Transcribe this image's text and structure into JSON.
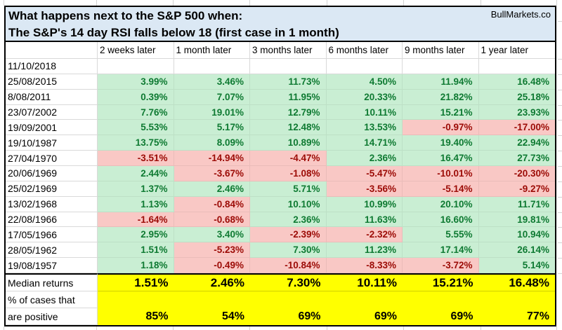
{
  "branding": "BullMarkets.co",
  "title": {
    "line1": "What happens next to the S&P 500 when:",
    "line2": "The S&P's 14 day RSI falls below 18 (first case in 1 month)"
  },
  "table": {
    "columns": [
      "2 weeks later",
      "1 month later",
      "3 months later",
      "6 months later",
      "9 months later",
      "1 year later"
    ],
    "rows": [
      {
        "date": "11/10/2018",
        "values": [
          "",
          "",
          "",
          "",
          "",
          ""
        ],
        "status": [
          "empty",
          "empty",
          "empty",
          "empty",
          "empty",
          "empty"
        ]
      },
      {
        "date": "25/08/2015",
        "values": [
          "3.99%",
          "3.46%",
          "11.73%",
          "4.50%",
          "11.94%",
          "16.48%"
        ],
        "status": [
          "positive",
          "positive",
          "positive",
          "positive",
          "positive",
          "positive"
        ]
      },
      {
        "date": "8/08/2011",
        "values": [
          "0.39%",
          "7.07%",
          "11.95%",
          "20.33%",
          "21.82%",
          "25.18%"
        ],
        "status": [
          "positive",
          "positive",
          "positive",
          "positive",
          "positive",
          "positive"
        ]
      },
      {
        "date": "23/07/2002",
        "values": [
          "7.76%",
          "19.01%",
          "12.79%",
          "10.11%",
          "15.21%",
          "23.93%"
        ],
        "status": [
          "positive",
          "positive",
          "positive",
          "positive",
          "positive",
          "positive"
        ]
      },
      {
        "date": "19/09/2001",
        "values": [
          "5.53%",
          "5.17%",
          "12.48%",
          "13.53%",
          "-0.97%",
          "-17.00%"
        ],
        "status": [
          "positive",
          "positive",
          "positive",
          "positive",
          "negative",
          "negative"
        ]
      },
      {
        "date": "19/10/1987",
        "values": [
          "13.75%",
          "8.09%",
          "10.89%",
          "14.71%",
          "19.40%",
          "22.94%"
        ],
        "status": [
          "positive",
          "positive",
          "positive",
          "positive",
          "positive",
          "positive"
        ]
      },
      {
        "date": "27/04/1970",
        "values": [
          "-3.51%",
          "-14.94%",
          "-4.47%",
          "2.36%",
          "16.47%",
          "27.73%"
        ],
        "status": [
          "negative",
          "negative",
          "negative",
          "positive",
          "positive",
          "positive"
        ]
      },
      {
        "date": "20/06/1969",
        "values": [
          "2.44%",
          "-3.67%",
          "-1.08%",
          "-5.47%",
          "-10.01%",
          "-20.30%"
        ],
        "status": [
          "positive",
          "negative",
          "negative",
          "negative",
          "negative",
          "negative"
        ]
      },
      {
        "date": "25/02/1969",
        "values": [
          "1.37%",
          "2.46%",
          "5.71%",
          "-3.56%",
          "-5.14%",
          "-9.27%"
        ],
        "status": [
          "positive",
          "positive",
          "positive",
          "negative",
          "negative",
          "negative"
        ]
      },
      {
        "date": "13/02/1968",
        "values": [
          "1.13%",
          "-0.84%",
          "10.10%",
          "10.99%",
          "20.10%",
          "11.71%"
        ],
        "status": [
          "positive",
          "negative",
          "positive",
          "positive",
          "positive",
          "positive"
        ]
      },
      {
        "date": "22/08/1966",
        "values": [
          "-1.64%",
          "-0.68%",
          "2.36%",
          "11.63%",
          "16.60%",
          "19.81%"
        ],
        "status": [
          "negative",
          "negative",
          "positive",
          "positive",
          "positive",
          "positive"
        ]
      },
      {
        "date": "17/05/1966",
        "values": [
          "2.95%",
          "3.40%",
          "-2.39%",
          "-2.32%",
          "5.55%",
          "10.94%"
        ],
        "status": [
          "positive",
          "positive",
          "negative",
          "negative",
          "positive",
          "positive"
        ]
      },
      {
        "date": "28/05/1962",
        "values": [
          "1.51%",
          "-5.23%",
          "7.30%",
          "11.23%",
          "17.14%",
          "26.14%"
        ],
        "status": [
          "positive",
          "negative",
          "positive",
          "positive",
          "positive",
          "positive"
        ]
      },
      {
        "date": "19/08/1957",
        "values": [
          "1.18%",
          "-0.49%",
          "-10.84%",
          "-8.33%",
          "-3.72%",
          "5.14%"
        ],
        "status": [
          "positive",
          "negative",
          "negative",
          "negative",
          "negative",
          "positive"
        ]
      }
    ],
    "summary": {
      "median_label": "Median returns",
      "median_values": [
        "1.51%",
        "2.46%",
        "7.30%",
        "10.11%",
        "15.21%",
        "16.48%"
      ],
      "pct_label_line1": "% of cases that",
      "pct_label_line2": "are positive",
      "pct_values": [
        "85%",
        "54%",
        "69%",
        "69%",
        "69%",
        "77%"
      ]
    }
  },
  "colors": {
    "title_bg": "#dbe8f4",
    "positive_bg": "#c9eed3",
    "positive_text": "#0e7a32",
    "negative_bg": "#f9c8c5",
    "negative_text": "#9c0b06",
    "summary_bg": "#ffff00",
    "border": "#000000",
    "gridline": "#d9d9d9"
  },
  "chart_data": {
    "type": "table",
    "title": "What happens next to the S&P 500 when: The S&P's 14 day RSI falls below 18 (first case in 1 month)",
    "columns": [
      "2 weeks later",
      "1 month later",
      "3 months later",
      "6 months later",
      "9 months later",
      "1 year later"
    ],
    "rows": [
      {
        "date": "11/10/2018",
        "values": [
          null,
          null,
          null,
          null,
          null,
          null
        ]
      },
      {
        "date": "25/08/2015",
        "values": [
          3.99,
          3.46,
          11.73,
          4.5,
          11.94,
          16.48
        ]
      },
      {
        "date": "8/08/2011",
        "values": [
          0.39,
          7.07,
          11.95,
          20.33,
          21.82,
          25.18
        ]
      },
      {
        "date": "23/07/2002",
        "values": [
          7.76,
          19.01,
          12.79,
          10.11,
          15.21,
          23.93
        ]
      },
      {
        "date": "19/09/2001",
        "values": [
          5.53,
          5.17,
          12.48,
          13.53,
          -0.97,
          -17.0
        ]
      },
      {
        "date": "19/10/1987",
        "values": [
          13.75,
          8.09,
          10.89,
          14.71,
          19.4,
          22.94
        ]
      },
      {
        "date": "27/04/1970",
        "values": [
          -3.51,
          -14.94,
          -4.47,
          2.36,
          16.47,
          27.73
        ]
      },
      {
        "date": "20/06/1969",
        "values": [
          2.44,
          -3.67,
          -1.08,
          -5.47,
          -10.01,
          -20.3
        ]
      },
      {
        "date": "25/02/1969",
        "values": [
          1.37,
          2.46,
          5.71,
          -3.56,
          -5.14,
          -9.27
        ]
      },
      {
        "date": "13/02/1968",
        "values": [
          1.13,
          -0.84,
          10.1,
          10.99,
          20.1,
          11.71
        ]
      },
      {
        "date": "22/08/1966",
        "values": [
          -1.64,
          -0.68,
          2.36,
          11.63,
          16.6,
          19.81
        ]
      },
      {
        "date": "17/05/1966",
        "values": [
          2.95,
          3.4,
          -2.39,
          -2.32,
          5.55,
          10.94
        ]
      },
      {
        "date": "28/05/1962",
        "values": [
          1.51,
          -5.23,
          7.3,
          11.23,
          17.14,
          26.14
        ]
      },
      {
        "date": "19/08/1957",
        "values": [
          1.18,
          -0.49,
          -10.84,
          -8.33,
          -3.72,
          5.14
        ]
      }
    ],
    "median_returns": [
      1.51,
      2.46,
      7.3,
      10.11,
      15.21,
      16.48
    ],
    "pct_cases_positive": [
      85,
      54,
      69,
      69,
      69,
      77
    ],
    "units": "percent"
  }
}
